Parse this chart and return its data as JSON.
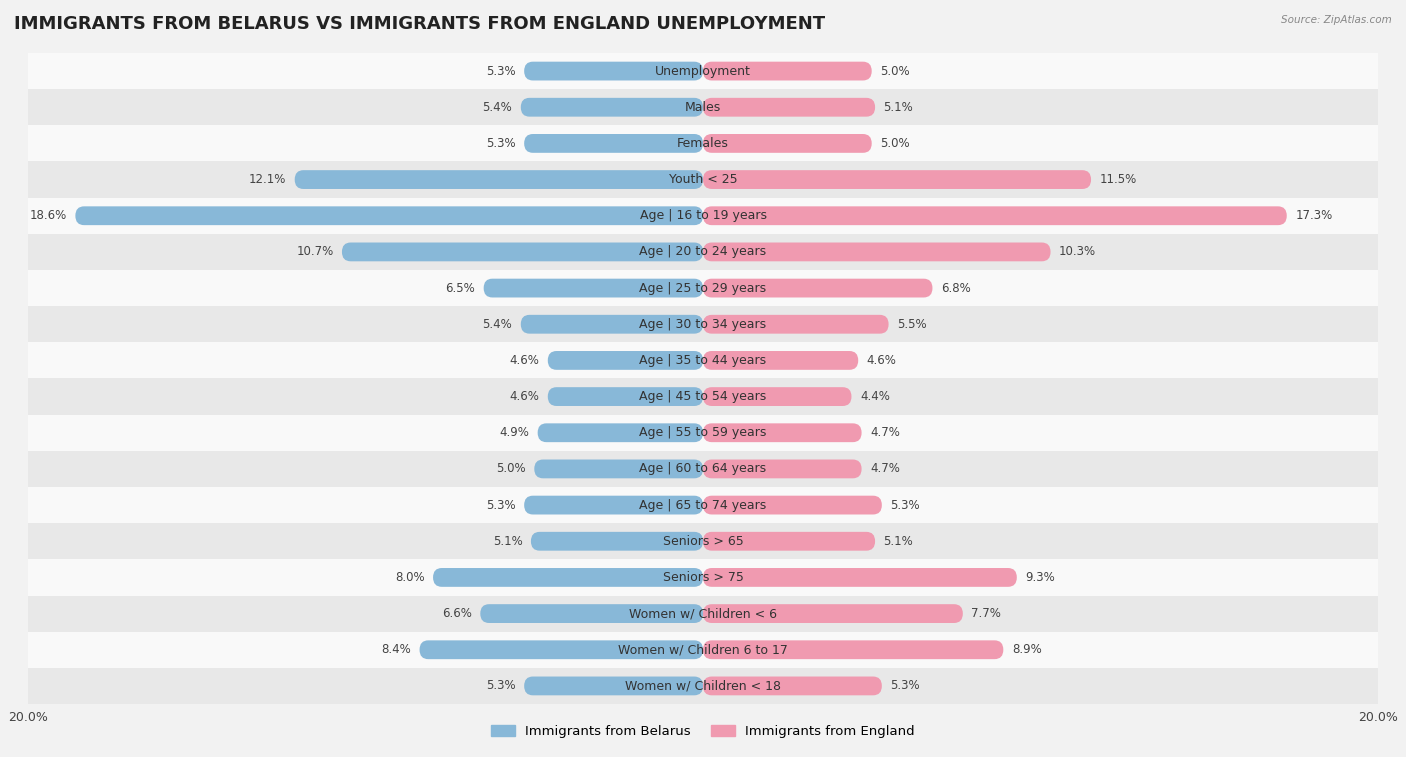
{
  "title": "IMMIGRANTS FROM BELARUS VS IMMIGRANTS FROM ENGLAND UNEMPLOYMENT",
  "source": "Source: ZipAtlas.com",
  "categories": [
    "Unemployment",
    "Males",
    "Females",
    "Youth < 25",
    "Age | 16 to 19 years",
    "Age | 20 to 24 years",
    "Age | 25 to 29 years",
    "Age | 30 to 34 years",
    "Age | 35 to 44 years",
    "Age | 45 to 54 years",
    "Age | 55 to 59 years",
    "Age | 60 to 64 years",
    "Age | 65 to 74 years",
    "Seniors > 65",
    "Seniors > 75",
    "Women w/ Children < 6",
    "Women w/ Children 6 to 17",
    "Women w/ Children < 18"
  ],
  "belarus_values": [
    5.3,
    5.4,
    5.3,
    12.1,
    18.6,
    10.7,
    6.5,
    5.4,
    4.6,
    4.6,
    4.9,
    5.0,
    5.3,
    5.1,
    8.0,
    6.6,
    8.4,
    5.3
  ],
  "england_values": [
    5.0,
    5.1,
    5.0,
    11.5,
    17.3,
    10.3,
    6.8,
    5.5,
    4.6,
    4.4,
    4.7,
    4.7,
    5.3,
    5.1,
    9.3,
    7.7,
    8.9,
    5.3
  ],
  "belarus_color": "#88b8d8",
  "england_color": "#f09ab0",
  "axis_max": 20.0,
  "background_color": "#f2f2f2",
  "row_color_light": "#f9f9f9",
  "row_color_dark": "#e8e8e8",
  "title_fontsize": 13,
  "label_fontsize": 9,
  "value_fontsize": 8.5,
  "legend_fontsize": 9.5
}
